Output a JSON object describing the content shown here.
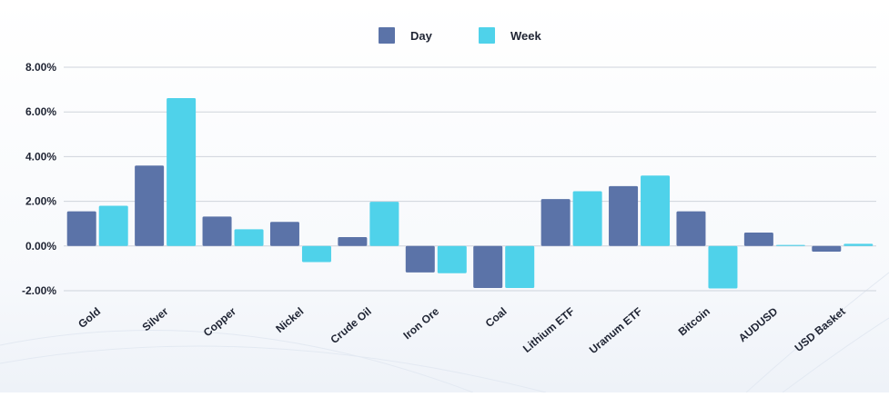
{
  "chart_data": {
    "type": "bar",
    "categories": [
      "Gold",
      "Silver",
      "Copper",
      "Nickel",
      "Crude Oil",
      "Iron Ore",
      "Coal",
      "Lithium ETF",
      "Uranum ETF",
      "Bitcoin",
      "AUDUSD",
      "USD Basket"
    ],
    "series": [
      {
        "name": "Day",
        "color": "#5b73a8",
        "values": [
          1.55,
          3.6,
          1.32,
          1.08,
          0.4,
          -1.18,
          -1.88,
          2.1,
          2.68,
          1.55,
          0.6,
          -0.25
        ]
      },
      {
        "name": "Week",
        "color": "#4fd2ea",
        "values": [
          1.8,
          6.62,
          0.75,
          -0.72,
          1.98,
          -1.22,
          -1.88,
          2.45,
          3.15,
          -1.9,
          0.05,
          0.1
        ]
      }
    ],
    "yticks": [
      "8.00%",
      "6.00%",
      "4.00%",
      "2.00%",
      "0.00%",
      "-2.00%"
    ],
    "ylim": [
      -2,
      8
    ],
    "legend_position": "top-center",
    "grid": true,
    "title": "",
    "xlabel": "",
    "ylabel": ""
  }
}
